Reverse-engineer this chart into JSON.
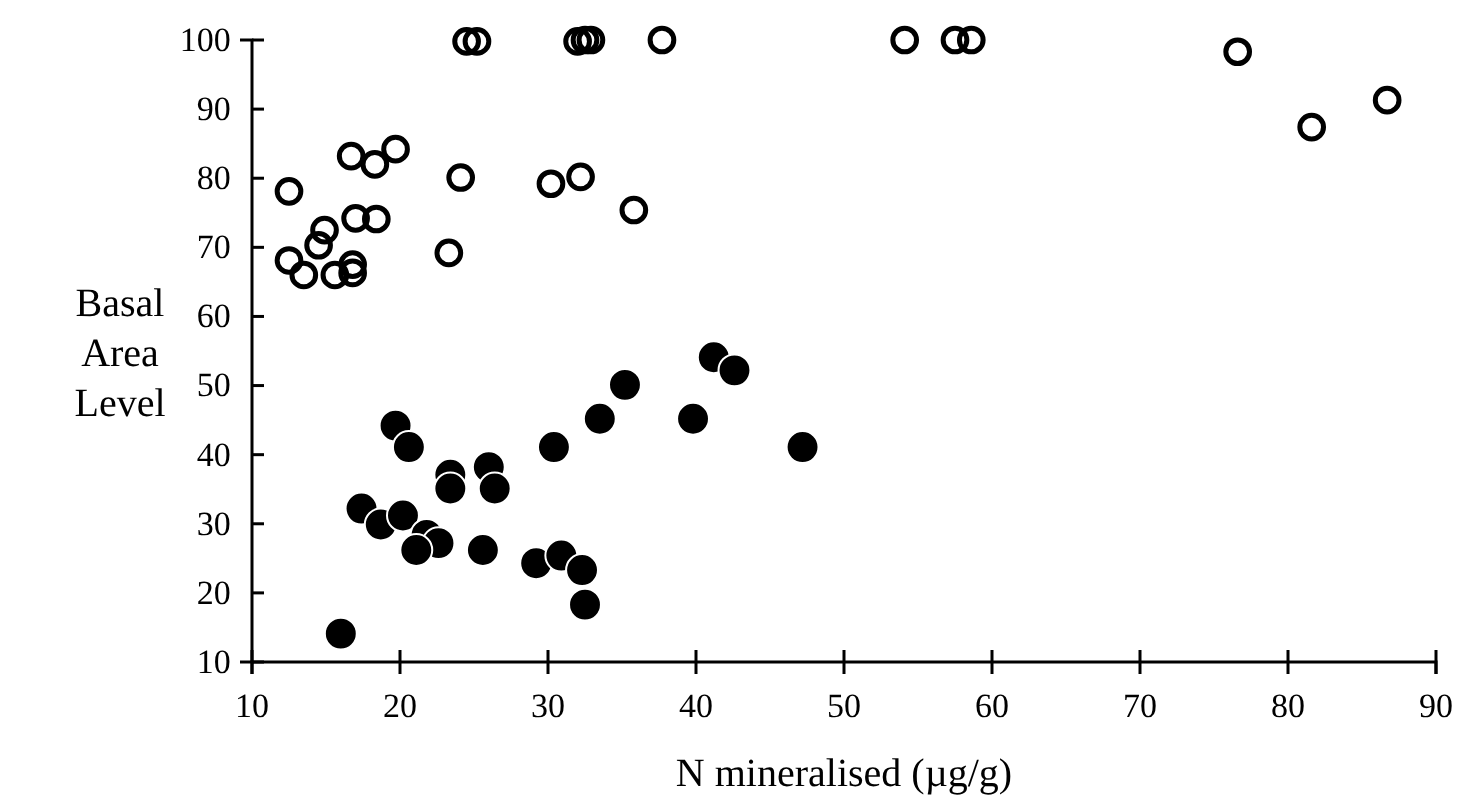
{
  "chart_data": {
    "type": "scatter",
    "xlabel": "N mineralised (µg/g)",
    "ylabel": "Basal\nArea\nLevel",
    "xlim": [
      10,
      90
    ],
    "xticks": [
      10,
      20,
      30,
      40,
      50,
      60,
      70,
      80,
      90
    ],
    "ylim": [
      10,
      100
    ],
    "yticks": [
      10,
      20,
      30,
      40,
      50,
      60,
      70,
      80,
      90,
      100
    ],
    "marker": "circle",
    "series": [
      {
        "color": "#000000",
        "x": [
          12.5,
          16.7,
          18.3,
          19.7,
          24.1,
          30.2,
          32.2,
          35.8,
          17.0,
          18.4,
          23.3,
          14.9,
          14.5,
          12.5,
          13.5,
          15.6,
          16.8,
          16.8,
          24.5,
          25.2,
          32.0,
          32.5,
          32.9,
          37.7,
          54.1,
          57.5,
          58.6,
          76.6,
          81.6,
          86.7
        ],
        "values": [
          78.1,
          83.2,
          82,
          84.2,
          80.1,
          79.2,
          80.2,
          75.4,
          74.2,
          74.1,
          69.2,
          72.5,
          70.3,
          68.1,
          66,
          66,
          67.5,
          66.3,
          99.8,
          99.8,
          99.8,
          100,
          100,
          100,
          100,
          100,
          100,
          98.3,
          87.4,
          91.3
        ]
      },
      {
        "color": "#000000",
        "x": [
          19.7,
          20.6,
          30.4,
          33.5,
          35.2,
          39.8,
          41.2,
          42.6,
          47.2,
          23.4,
          23.4,
          26.0,
          26.4,
          17.4,
          18.7,
          20.2,
          21.8,
          22.6,
          21.1,
          25.6,
          29.2,
          30.9,
          32.3,
          32.5,
          16.0
        ],
        "values": [
          44.2,
          41.1,
          41.1,
          45.2,
          50.1,
          45.2,
          54.1,
          52.2,
          41.1,
          37.1,
          35.1,
          38.2,
          35.1,
          32.2,
          29.9,
          31.2,
          28.4,
          27.2,
          26.2,
          26.2,
          24.3,
          25.4,
          23.3,
          18.3,
          14.1
        ]
      }
    ]
  }
}
